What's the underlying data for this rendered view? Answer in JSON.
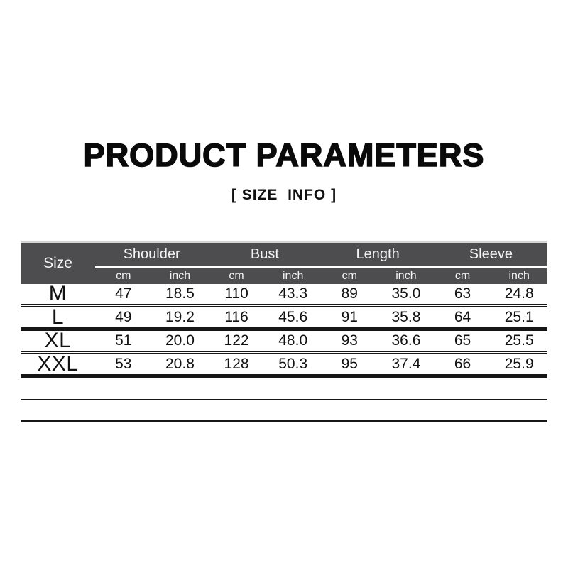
{
  "page": {
    "title": "PRODUCT PARAMETERS",
    "subtitle": "[ SIZE  INFO ]"
  },
  "size_table": {
    "size_header": "Size",
    "groups": [
      {
        "label": "Shoulder",
        "units": [
          "cm",
          "inch"
        ]
      },
      {
        "label": "Bust",
        "units": [
          "cm",
          "inch"
        ]
      },
      {
        "label": "Length",
        "units": [
          "cm",
          "inch"
        ]
      },
      {
        "label": "Sleeve",
        "units": [
          "cm",
          "inch"
        ]
      }
    ],
    "rows": [
      {
        "size": "M",
        "values": [
          "47",
          "18.5",
          "110",
          "43.3",
          "89",
          "35.0",
          "63",
          "24.8"
        ]
      },
      {
        "size": "L",
        "values": [
          "49",
          "19.2",
          "116",
          "45.6",
          "91",
          "35.8",
          "64",
          "25.1"
        ]
      },
      {
        "size": "XL",
        "values": [
          "51",
          "20.0",
          "122",
          "48.0",
          "93",
          "36.6",
          "65",
          "25.5"
        ]
      },
      {
        "size": "XXL",
        "values": [
          "53",
          "20.8",
          "128",
          "50.3",
          "95",
          "37.4",
          "66",
          "25.9"
        ]
      }
    ],
    "empty_rows": 2
  },
  "chart_data": {
    "type": "table",
    "title": "PRODUCT PARAMETERS",
    "subtitle": "[ SIZE INFO ]",
    "columns": [
      "Size",
      "Shoulder cm",
      "Shoulder inch",
      "Bust cm",
      "Bust inch",
      "Length cm",
      "Length inch",
      "Sleeve cm",
      "Sleeve inch"
    ],
    "rows": [
      [
        "M",
        47,
        18.5,
        110,
        43.3,
        89,
        35.0,
        63,
        24.8
      ],
      [
        "L",
        49,
        19.2,
        116,
        45.6,
        91,
        35.8,
        64,
        25.1
      ],
      [
        "XL",
        51,
        20.0,
        122,
        48.0,
        93,
        36.6,
        65,
        25.5
      ],
      [
        "XXL",
        53,
        20.8,
        128,
        50.3,
        95,
        37.4,
        66,
        25.9
      ]
    ]
  },
  "colors": {
    "header_bg": "#4d4d4f",
    "header_text": "#f4f4f4",
    "body_text": "#121212",
    "divider": "#161616",
    "top_strip": "#d5d5d5",
    "background": "#ffffff"
  }
}
